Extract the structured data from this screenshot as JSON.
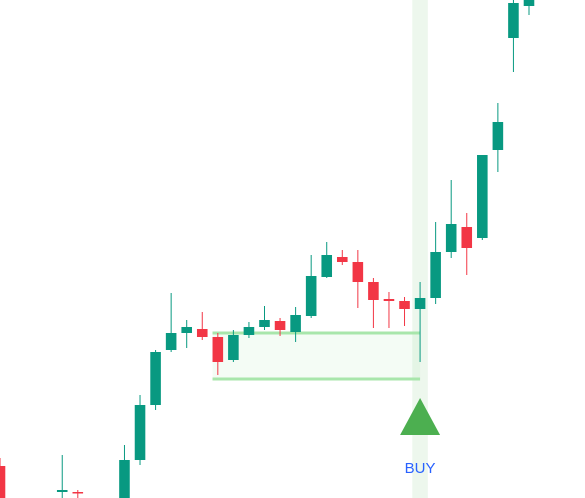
{
  "chart_data": {
    "type": "candlestick",
    "x": [
      0,
      4,
      5,
      8,
      9,
      10,
      11,
      12,
      13,
      14,
      15,
      16,
      17,
      18,
      19,
      20,
      21,
      22,
      23,
      24,
      25,
      26,
      27,
      28,
      29,
      30,
      31,
      32,
      33,
      34
    ],
    "open": [
      32,
      6,
      6,
      0,
      38,
      93,
      148,
      165,
      169,
      161,
      138,
      163,
      171,
      177,
      166,
      182,
      221,
      241,
      236,
      216,
      199,
      197,
      189,
      200,
      246,
      271,
      260,
      348,
      460,
      492
    ],
    "high": [
      40,
      43,
      8,
      53,
      103,
      148,
      205,
      178,
      186,
      165,
      168,
      176,
      192,
      180,
      191,
      243,
      256,
      248,
      248,
      220,
      206,
      201,
      216,
      276,
      318,
      285,
      343,
      395,
      498,
      498
    ],
    "low": [
      0,
      0,
      0,
      0,
      33,
      88,
      146,
      150,
      158,
      123,
      136,
      160,
      168,
      162,
      156,
      180,
      220,
      233,
      190,
      170,
      170,
      172,
      136,
      194,
      240,
      223,
      258,
      326,
      426,
      483
    ],
    "close": [
      0,
      8,
      5,
      38,
      93,
      146,
      165,
      171,
      161,
      136,
      163,
      171,
      178,
      168,
      183,
      222,
      243,
      236,
      216,
      198,
      197,
      189,
      200,
      246,
      274,
      250,
      343,
      376,
      495,
      498
    ],
    "up_color": "#089981",
    "down_color": "#f23645",
    "xlim": [
      0,
      37.6
    ],
    "ylim": [
      0,
      498
    ],
    "zone": {
      "x_start": 14,
      "x_end": 27,
      "top": 165,
      "bottom": 119,
      "color": "#a8e6ab"
    },
    "signals": [
      {
        "label": "BUY",
        "x": 27,
        "color": "#4caf50",
        "label_color": "#2962ff"
      }
    ]
  }
}
